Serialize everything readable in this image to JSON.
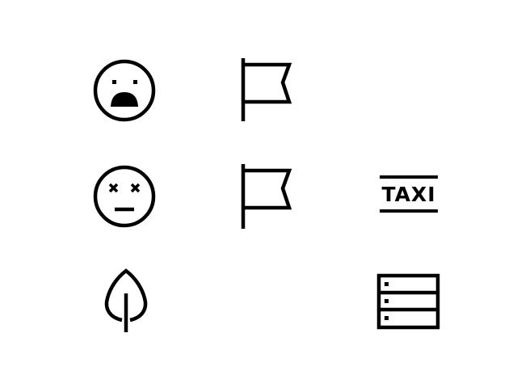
{
  "colors": {
    "background": "#ffffff",
    "ink": "#000000"
  },
  "icons": [
    {
      "row": 1,
      "col": 1,
      "name": "shocked-face-icon"
    },
    {
      "row": 1,
      "col": 2,
      "name": "flag-icon"
    },
    {
      "row": 2,
      "col": 1,
      "name": "dead-face-icon"
    },
    {
      "row": 2,
      "col": 2,
      "name": "flag-icon"
    },
    {
      "row": 2,
      "col": 3,
      "name": "taxi-sign-icon"
    },
    {
      "row": 3,
      "col": 1,
      "name": "leaf-icon"
    },
    {
      "row": 3,
      "col": 3,
      "name": "server-rack-icon"
    }
  ],
  "taxi_sign": {
    "label": "TAXI"
  }
}
